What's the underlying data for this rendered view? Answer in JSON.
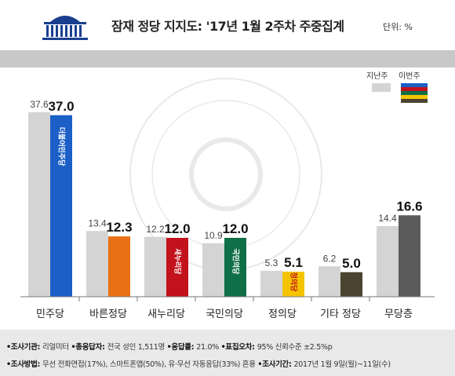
{
  "header": {
    "title": "잠재 정당 지지도: '17년 1월 2주차 주중집계",
    "unit": "단위: %"
  },
  "legend": {
    "prev_label": "지난주",
    "curr_label": "이번주"
  },
  "chart_data": {
    "type": "bar",
    "categories": [
      "민주당",
      "바른정당",
      "새누리당",
      "국민의당",
      "정의당",
      "기타 정당",
      "무당층"
    ],
    "series": [
      {
        "name": "지난주",
        "values": [
          37.6,
          13.4,
          12.2,
          10.9,
          5.3,
          6.2,
          14.4
        ]
      },
      {
        "name": "이번주",
        "values": [
          37.0,
          12.3,
          12.0,
          12.0,
          5.1,
          5.0,
          16.6
        ]
      }
    ],
    "prev_labels": [
      "37.6",
      "13.4",
      "12.2",
      "10.9",
      "5.3",
      "6.2",
      "14.4"
    ],
    "curr_labels": [
      "37.0",
      "12.3",
      "12.0",
      "12.0",
      "5.1",
      "5.0",
      "16.6"
    ],
    "colors": {
      "prev": "#d4d4d4",
      "curr": [
        "#1b5fc7",
        "#ea7016",
        "#c2121c",
        "#0f6f47",
        "#f5c400",
        "#4a4430",
        "#5b5b5b"
      ]
    },
    "logo_text": [
      "더불어민주당",
      "",
      "새누리당",
      "국민의당",
      "정의당",
      "",
      ""
    ],
    "ylim": [
      0,
      40
    ],
    "grid": false,
    "legend_position": "top-right"
  },
  "footer": {
    "line1": [
      {
        "label": "•조사기관: ",
        "text": "리얼미터 "
      },
      {
        "label": "•총응답자: ",
        "text": "전국 성인 1,511명 "
      },
      {
        "label": "•응답률: ",
        "text": "21.0% "
      },
      {
        "label": "•표집오차: ",
        "text": "95% 신뢰수준 ±2.5%p"
      }
    ],
    "line2": [
      {
        "label": "•조사방법: ",
        "text": "무선 전화면접(17%), 스마트폰앱(50%), 유·무선 자동응답(33%) 혼용 "
      },
      {
        "label": "•조사기간: ",
        "text": "2017년 1월 9일(월)~11일(수)"
      }
    ]
  }
}
